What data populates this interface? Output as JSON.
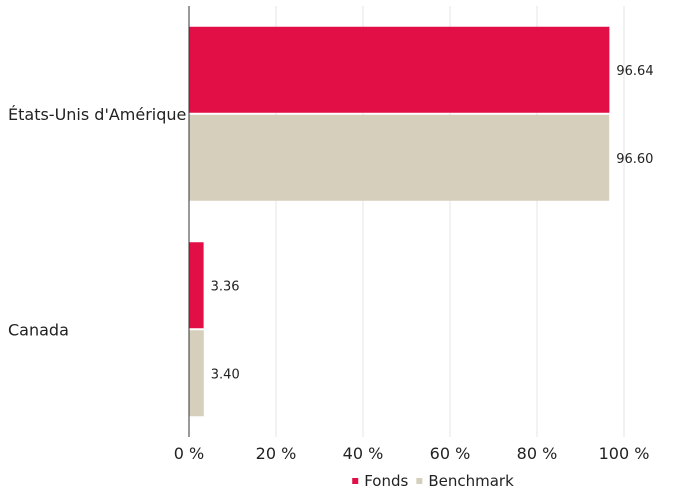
{
  "chart_data": {
    "type": "bar",
    "orientation": "horizontal",
    "categories": [
      "États-Unis d'Amérique",
      "Canada"
    ],
    "series": [
      {
        "name": "Fonds",
        "values": [
          96.64,
          3.36
        ],
        "labels": [
          "96.64",
          "3.36"
        ],
        "color": "#e20f47"
      },
      {
        "name": "Benchmark",
        "values": [
          96.6,
          3.4
        ],
        "labels": [
          "96.60",
          "3.40"
        ],
        "color": "#d6cfbb"
      }
    ],
    "xlim": [
      0,
      100
    ],
    "xticks": [
      0,
      20,
      40,
      60,
      80,
      100
    ],
    "xtick_labels": [
      "0 %",
      "20 %",
      "40 %",
      "60 %",
      "80 %",
      "100 %"
    ],
    "grid": true,
    "legend_position": "bottom"
  }
}
